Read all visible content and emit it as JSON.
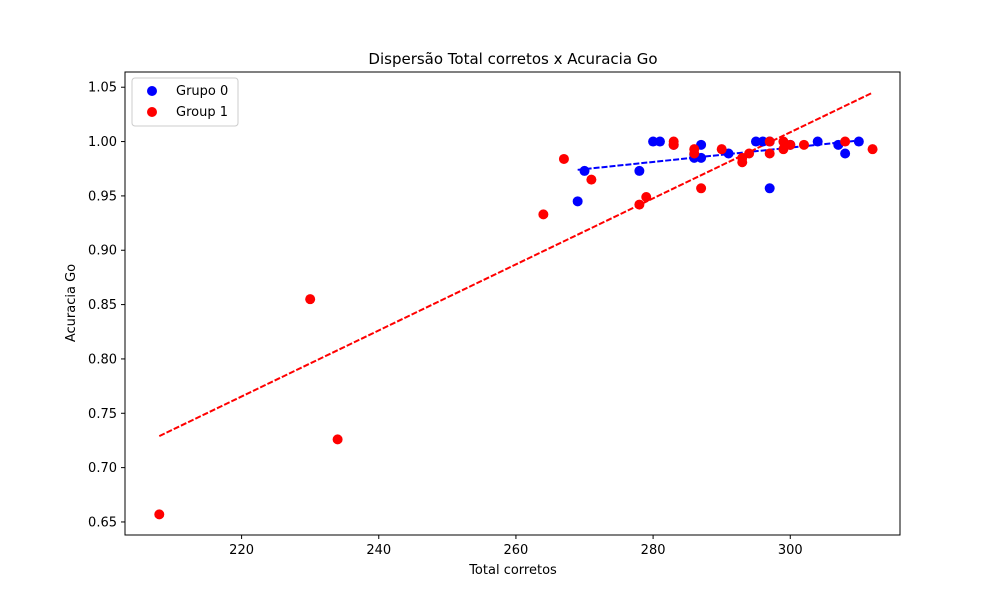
{
  "chart_data": {
    "type": "scatter",
    "title": "Dispersão Total corretos x Acuracia Go",
    "xlabel": "Total corretos",
    "ylabel": "Acuracia Go",
    "xlim": [
      203,
      316
    ],
    "ylim": [
      0.638,
      1.064
    ],
    "xticks": [
      220,
      240,
      260,
      280,
      300
    ],
    "yticks": [
      0.65,
      0.7,
      0.75,
      0.8,
      0.85,
      0.9,
      0.95,
      1.0,
      1.05
    ],
    "xtick_labels": [
      "220",
      "240",
      "260",
      "280",
      "300"
    ],
    "ytick_labels": [
      "0.65",
      "0.70",
      "0.75",
      "0.80",
      "0.85",
      "0.90",
      "0.95",
      "1.00",
      "1.05"
    ],
    "legend_position": "top-left",
    "series": [
      {
        "name": "Grupo 0",
        "color": "#0000ff",
        "points": [
          [
            269,
            0.945
          ],
          [
            270,
            0.973
          ],
          [
            278,
            0.973
          ],
          [
            280,
            1.0
          ],
          [
            281,
            1.0
          ],
          [
            283,
            0.997
          ],
          [
            286,
            0.985
          ],
          [
            286,
            0.988
          ],
          [
            287,
            0.985
          ],
          [
            287,
            0.997
          ],
          [
            291,
            0.989
          ],
          [
            295,
            1.0
          ],
          [
            296,
            1.0
          ],
          [
            297,
            1.0
          ],
          [
            297,
            0.957
          ],
          [
            300,
            0.997
          ],
          [
            304,
            1.0
          ],
          [
            307,
            0.997
          ],
          [
            308,
            0.989
          ],
          [
            310,
            1.0
          ]
        ],
        "trendline": {
          "x": [
            269,
            310
          ],
          "y": [
            0.974,
            1.001
          ],
          "style": "dashed"
        }
      },
      {
        "name": "Group 1",
        "color": "#ff0000",
        "points": [
          [
            208,
            0.657
          ],
          [
            230,
            0.855
          ],
          [
            234,
            0.726
          ],
          [
            264,
            0.933
          ],
          [
            267,
            0.984
          ],
          [
            271,
            0.965
          ],
          [
            278,
            0.942
          ],
          [
            279,
            0.949
          ],
          [
            283,
            1.0
          ],
          [
            283,
            0.997
          ],
          [
            286,
            0.993
          ],
          [
            286,
            0.989
          ],
          [
            287,
            0.957
          ],
          [
            290,
            0.993
          ],
          [
            293,
            0.981
          ],
          [
            293,
            0.985
          ],
          [
            294,
            0.989
          ],
          [
            297,
            0.989
          ],
          [
            297,
            1.0
          ],
          [
            299,
            0.993
          ],
          [
            299,
            1.0
          ],
          [
            300,
            0.997
          ],
          [
            302,
            0.997
          ],
          [
            308,
            1.0
          ],
          [
            312,
            0.993
          ]
        ],
        "trendline": {
          "x": [
            208,
            312
          ],
          "y": [
            0.729,
            1.045
          ],
          "style": "dashed"
        }
      }
    ]
  }
}
